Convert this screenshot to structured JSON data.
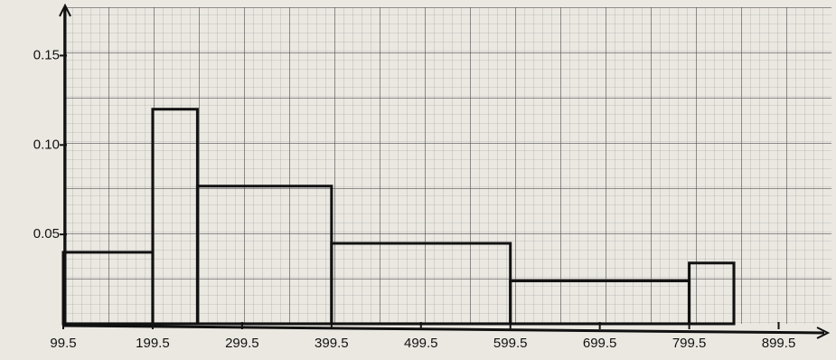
{
  "chart_data": {
    "type": "histogram",
    "bins": [
      99.5,
      199.5,
      249.5,
      399.5,
      599.5,
      799.5,
      849.5
    ],
    "values": [
      0.04,
      0.12,
      0.077,
      0.045,
      0.024,
      0.034
    ],
    "color": "#111111",
    "xlim": [
      99.5,
      949.5
    ],
    "ylim": [
      0,
      0.175
    ],
    "xticks": [
      99.5,
      199.5,
      299.5,
      399.5,
      499.5,
      599.5,
      699.5,
      799.5,
      899.5
    ],
    "yticks": [
      0.05,
      {
        "value": 0.1,
        "label": "0.10"
      },
      0.15
    ]
  }
}
